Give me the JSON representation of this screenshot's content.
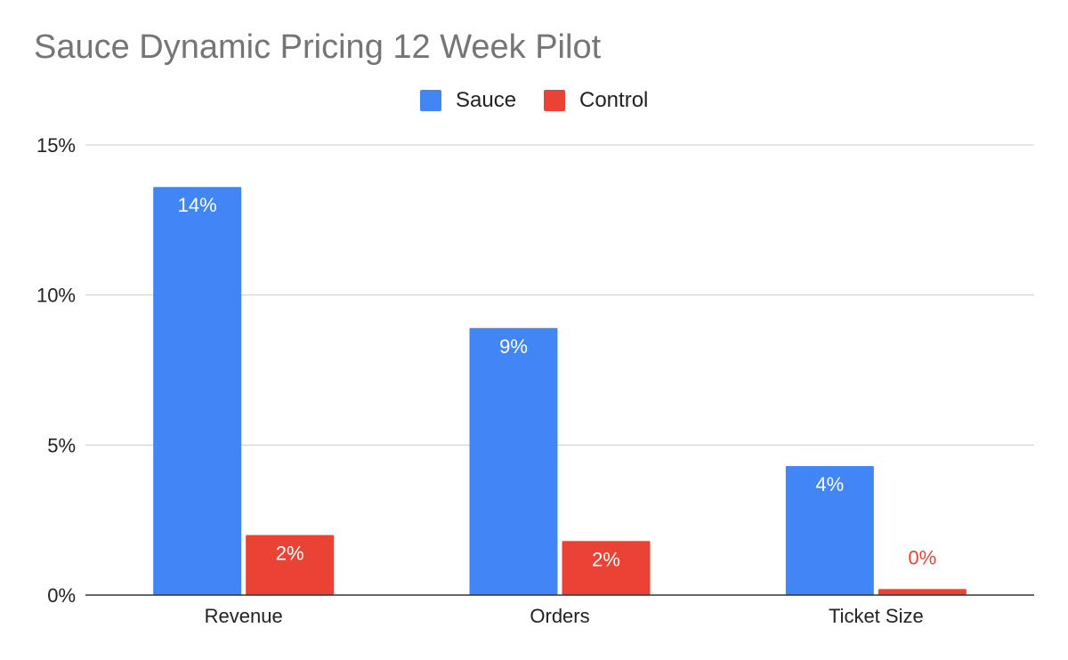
{
  "chart_data": {
    "type": "bar",
    "title": "Sauce Dynamic Pricing 12 Week Pilot",
    "categories": [
      "Revenue",
      "Orders",
      "Ticket Size"
    ],
    "series": [
      {
        "name": "Sauce",
        "color": "#4285f4",
        "values": [
          13.6,
          8.9,
          4.3
        ],
        "labels": [
          "14%",
          "9%",
          "4%"
        ]
      },
      {
        "name": "Control",
        "color": "#ea4335",
        "values": [
          2.0,
          1.8,
          0.2
        ],
        "labels": [
          "2%",
          "2%",
          "0%"
        ]
      }
    ],
    "ylim": [
      0,
      15
    ],
    "yticks": [
      0,
      5,
      10,
      15
    ],
    "ytick_labels": [
      "0%",
      "5%",
      "10%",
      "15%"
    ],
    "xlabel": "",
    "ylabel": "",
    "grid": true,
    "legend_position": "top-center",
    "colors": {
      "axis": "#333333",
      "grid": "#cccccc",
      "outside_label": "#ea4335"
    }
  }
}
